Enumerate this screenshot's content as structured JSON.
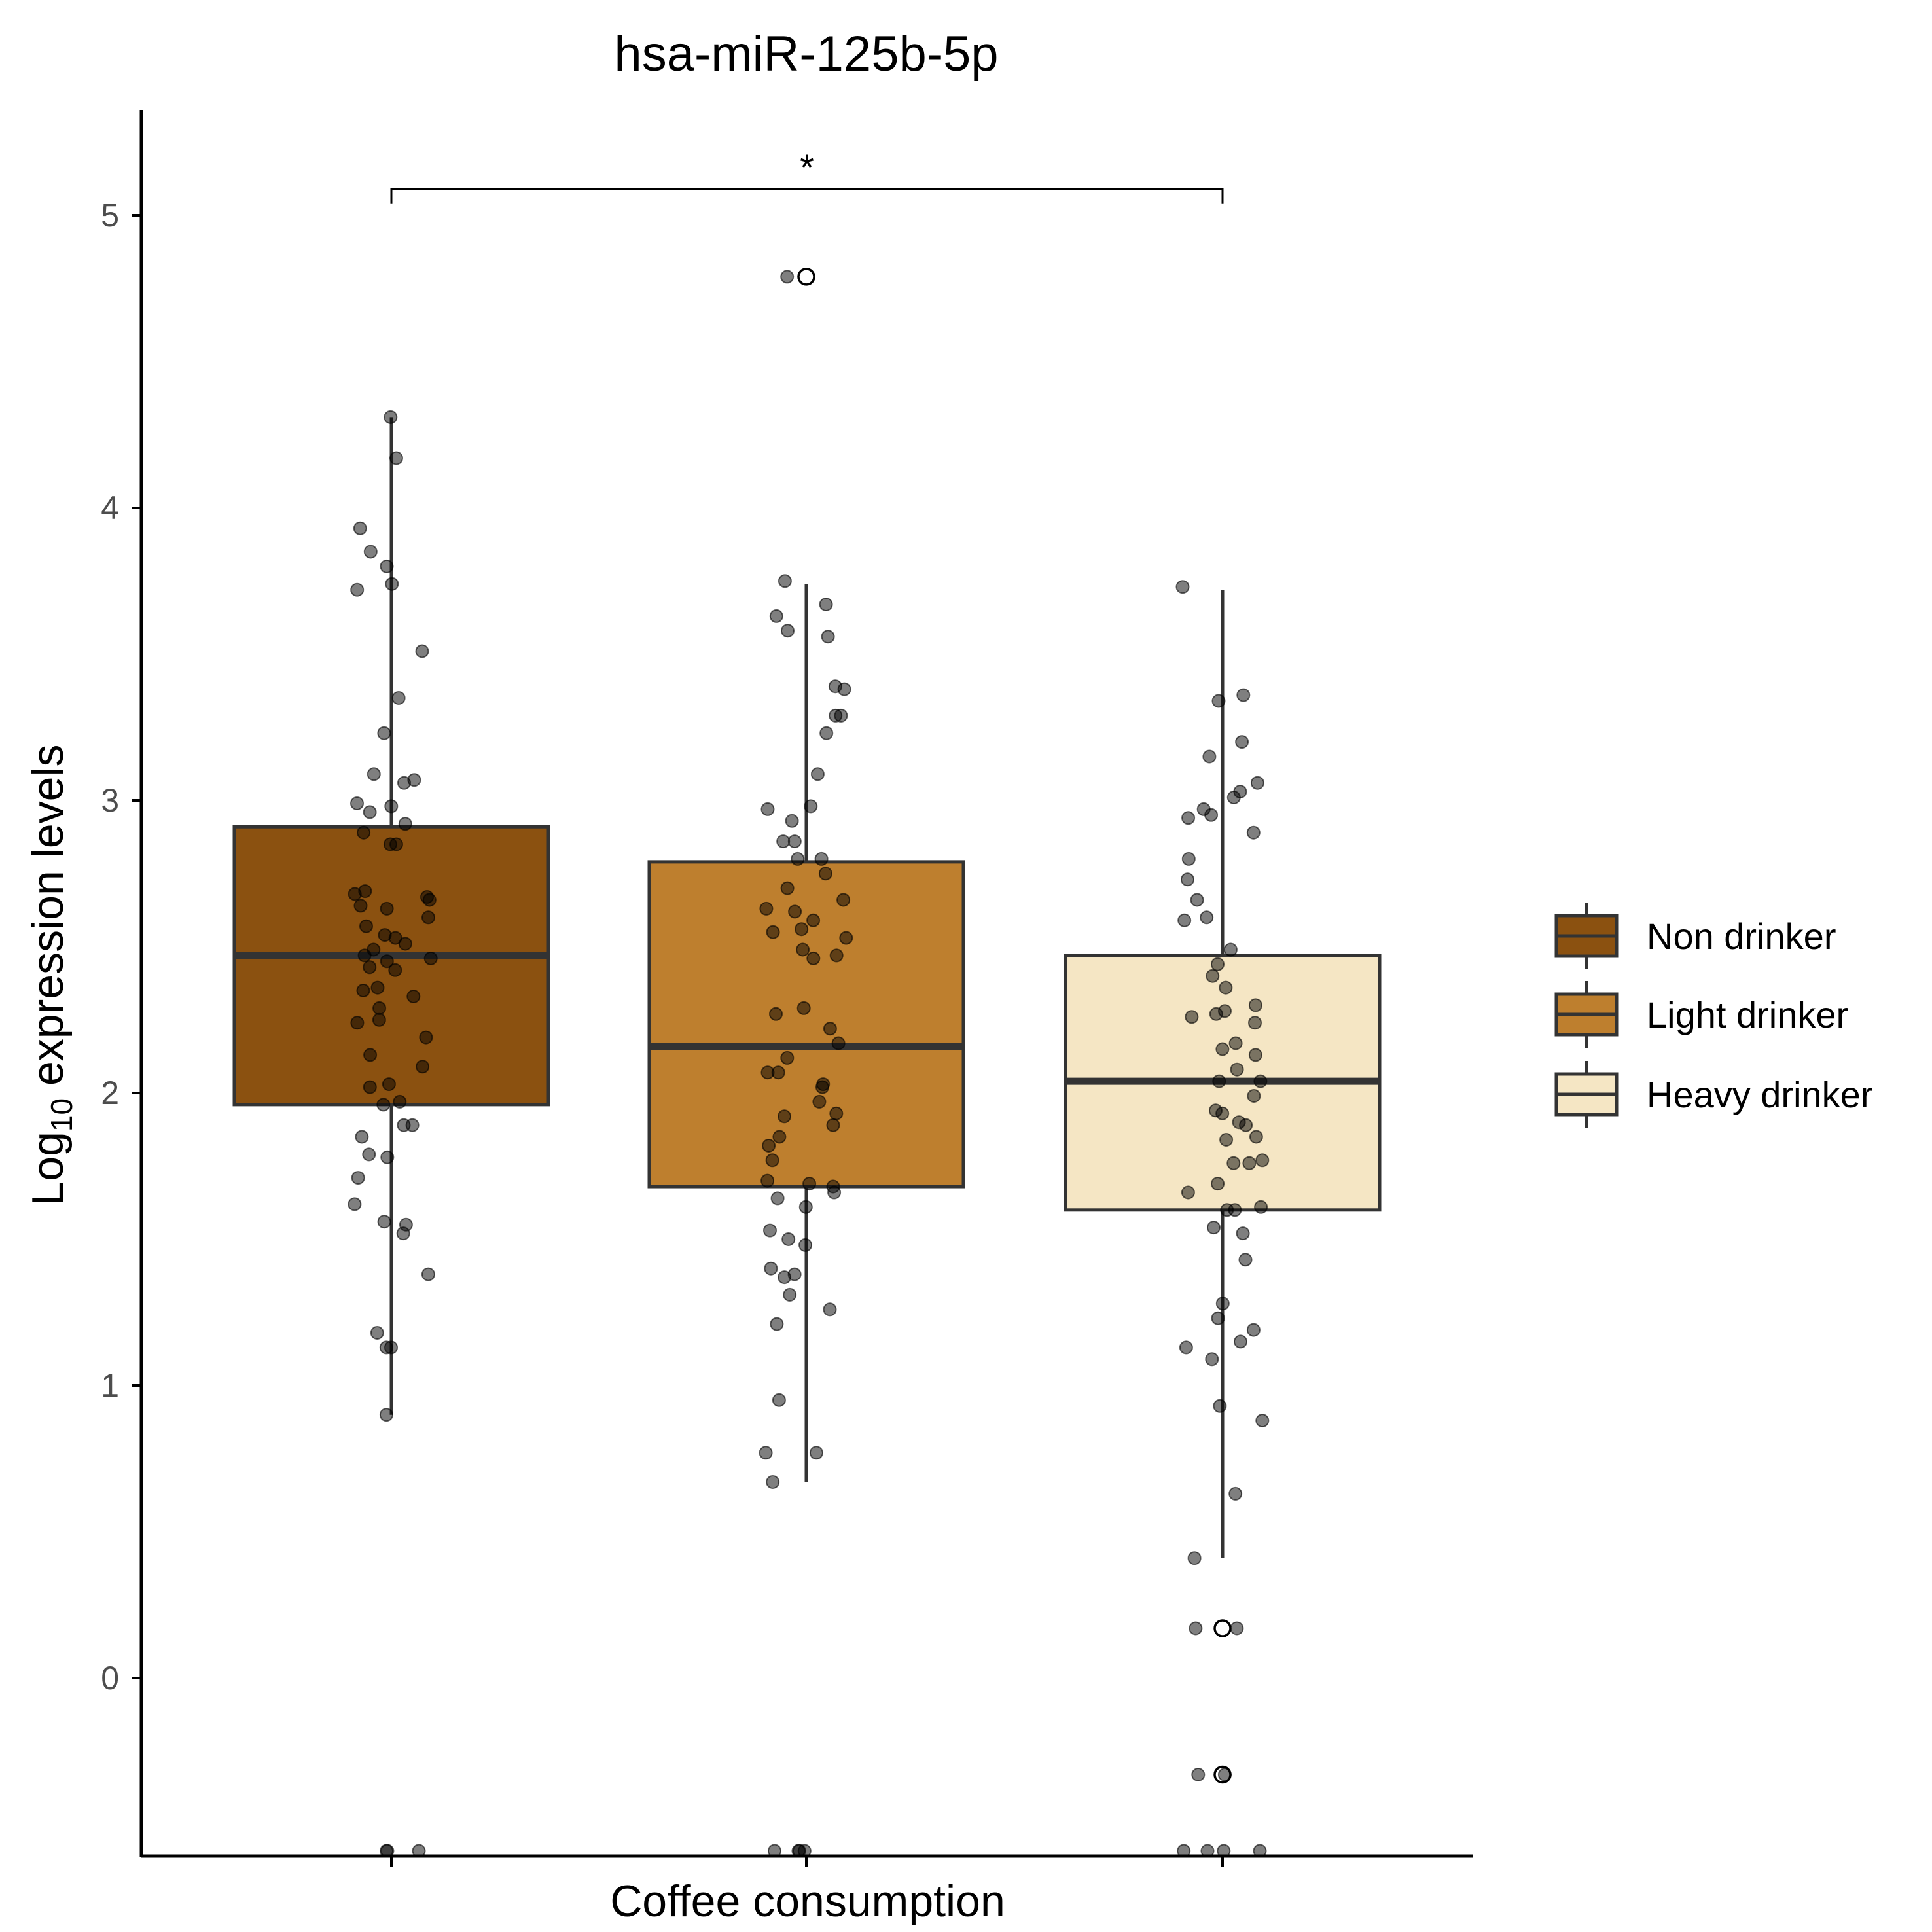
{
  "chart_data": {
    "type": "boxplot",
    "title": "hsa-miR-125b-5p",
    "xlabel": "Coffee consumption",
    "ylabel_main": "Log",
    "ylabel_sub": "10",
    "ylabel_rest": " expression levels",
    "ylim": [
      -0.6,
      5.35
    ],
    "yticks": [
      0,
      1,
      2,
      3,
      4,
      5
    ],
    "ytick_labels": [
      "0",
      "1",
      "2",
      "3",
      "4",
      "5"
    ],
    "grid": false,
    "legend_position": "right",
    "colors": {
      "point": "#000000",
      "box_stroke": "#333333",
      "axis": "#000000"
    },
    "groups": [
      {
        "name": "Non drinker",
        "color": "#8B5110",
        "q1": 1.96,
        "median": 2.47,
        "q3": 2.91,
        "whisker_low": 0.9,
        "whisker_high": 4.31,
        "outliers": [],
        "points": [
          4.31,
          4.17,
          3.93,
          3.85,
          3.8,
          3.74,
          3.72,
          3.51,
          3.35,
          3.23,
          3.09,
          3.07,
          3.06,
          2.99,
          2.98,
          2.96,
          2.92,
          2.89,
          2.85,
          2.85,
          2.69,
          2.68,
          2.67,
          2.66,
          2.64,
          2.63,
          2.6,
          2.57,
          2.54,
          2.53,
          2.51,
          2.49,
          2.47,
          2.46,
          2.45,
          2.43,
          2.42,
          2.36,
          2.35,
          2.33,
          2.29,
          2.25,
          2.24,
          2.19,
          2.13,
          2.09,
          2.03,
          2.02,
          1.97,
          1.96,
          1.89,
          1.89,
          1.85,
          1.79,
          1.78,
          1.71,
          1.62,
          1.56,
          1.55,
          1.52,
          1.38,
          1.18,
          1.13,
          1.13,
          0.9,
          -0.6,
          -0.6,
          -0.6
        ]
      },
      {
        "name": "Light drinker",
        "color": "#BE7F2E",
        "q1": 1.68,
        "median": 2.16,
        "q3": 2.79,
        "whisker_low": 0.67,
        "whisker_high": 3.74,
        "outliers": [
          4.79
        ],
        "points": [
          4.79,
          3.75,
          3.67,
          3.63,
          3.58,
          3.56,
          3.39,
          3.38,
          3.29,
          3.29,
          3.23,
          3.09,
          2.98,
          2.97,
          2.93,
          2.86,
          2.86,
          2.8,
          2.8,
          2.75,
          2.7,
          2.66,
          2.63,
          2.62,
          2.59,
          2.56,
          2.55,
          2.53,
          2.49,
          2.47,
          2.46,
          2.29,
          2.27,
          2.22,
          2.17,
          2.12,
          2.07,
          2.07,
          2.03,
          2.02,
          1.97,
          1.93,
          1.92,
          1.89,
          1.85,
          1.82,
          1.77,
          1.7,
          1.69,
          1.68,
          1.66,
          1.64,
          1.61,
          1.53,
          1.5,
          1.48,
          1.4,
          1.38,
          1.37,
          1.31,
          1.26,
          1.21,
          0.95,
          0.77,
          0.77,
          0.67,
          -0.6,
          -0.6,
          -0.6,
          -0.6
        ]
      },
      {
        "name": "Heavy drinker",
        "color": "#F5E6C4",
        "q1": 1.6,
        "median": 2.04,
        "q3": 2.47,
        "whisker_low": 0.41,
        "whisker_high": 3.72,
        "outliers": [
          0.17,
          -0.33
        ],
        "points": [
          3.73,
          3.36,
          3.34,
          3.2,
          3.15,
          3.06,
          3.03,
          3.01,
          2.97,
          2.95,
          2.94,
          2.89,
          2.8,
          2.73,
          2.66,
          2.6,
          2.59,
          2.49,
          2.44,
          2.4,
          2.36,
          2.3,
          2.28,
          2.27,
          2.26,
          2.24,
          2.17,
          2.15,
          2.13,
          2.08,
          2.04,
          2.04,
          1.99,
          1.94,
          1.93,
          1.9,
          1.89,
          1.85,
          1.84,
          1.77,
          1.76,
          1.76,
          1.69,
          1.66,
          1.61,
          1.6,
          1.6,
          1.54,
          1.52,
          1.43,
          1.28,
          1.23,
          1.19,
          1.15,
          1.13,
          1.09,
          0.93,
          0.88,
          0.63,
          0.41,
          0.17,
          0.17,
          -0.33,
          -0.33,
          -0.6,
          -0.6,
          -0.6,
          -0.6
        ]
      }
    ],
    "significance": {
      "from_group": 0,
      "to_group": 2,
      "y": 5.09,
      "label": "*"
    }
  }
}
